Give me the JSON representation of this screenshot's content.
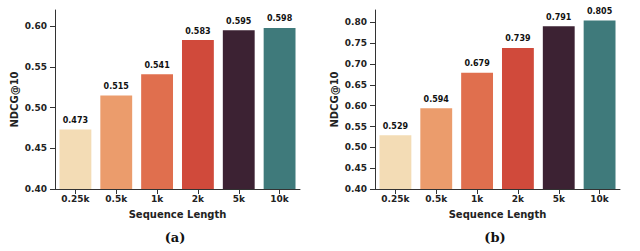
{
  "chart_data": [
    {
      "type": "bar",
      "title": "(a)",
      "x_label": "Sequence Length",
      "y_label": "NDCG@10",
      "categories": [
        "0.25k",
        "0.5k",
        "1k",
        "2k",
        "5k",
        "10k"
      ],
      "values": [
        0.473,
        0.515,
        0.541,
        0.583,
        0.595,
        0.598
      ],
      "colors": [
        "#f3dcb5",
        "#eb9c6c",
        "#e06f4e",
        "#d04a3b",
        "#3c2233",
        "#3f7a7b"
      ],
      "ylim": [
        0.4,
        0.62
      ],
      "yticks": [
        {
          "value": 0.4,
          "label": "0.40"
        },
        {
          "value": 0.45,
          "label": "0.45"
        },
        {
          "value": 0.5,
          "label": "0.50"
        },
        {
          "value": 0.55,
          "label": "0.55"
        },
        {
          "value": 0.6,
          "label": "0.60"
        }
      ],
      "grid": false,
      "data_labels": true
    },
    {
      "type": "bar",
      "title": "(b)",
      "x_label": "Sequence Length",
      "y_label": "NDCG@10",
      "categories": [
        "0.25k",
        "0.5k",
        "1k",
        "2k",
        "5k",
        "10k"
      ],
      "values": [
        0.529,
        0.594,
        0.679,
        0.739,
        0.791,
        0.805
      ],
      "colors": [
        "#f3dcb5",
        "#eb9c6c",
        "#e06f4e",
        "#d04a3b",
        "#3c2233",
        "#3f7a7b"
      ],
      "ylim": [
        0.4,
        0.83
      ],
      "yticks": [
        {
          "value": 0.4,
          "label": "0.40"
        },
        {
          "value": 0.45,
          "label": "0.45"
        },
        {
          "value": 0.5,
          "label": "0.50"
        },
        {
          "value": 0.55,
          "label": "0.55"
        },
        {
          "value": 0.6,
          "label": "0.60"
        },
        {
          "value": 0.65,
          "label": "0.65"
        },
        {
          "value": 0.7,
          "label": "0.70"
        },
        {
          "value": 0.75,
          "label": "0.75"
        },
        {
          "value": 0.8,
          "label": "0.80"
        }
      ],
      "grid": false,
      "data_labels": true
    }
  ]
}
